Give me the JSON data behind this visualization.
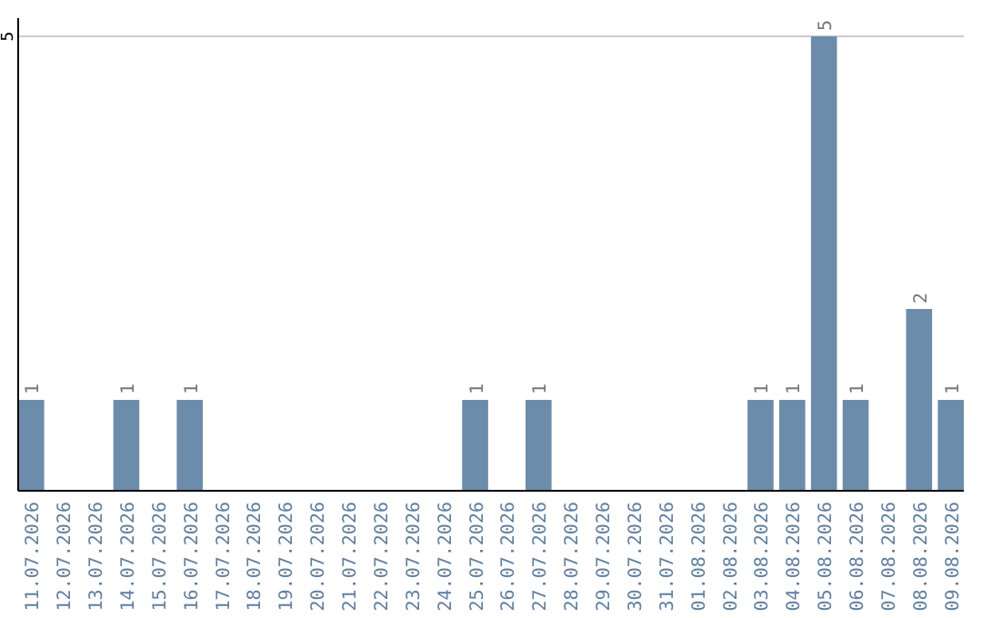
{
  "chart_data": {
    "type": "bar",
    "categories": [
      "11.07.2026",
      "12.07.2026",
      "13.07.2026",
      "14.07.2026",
      "15.07.2026",
      "16.07.2026",
      "17.07.2026",
      "18.07.2026",
      "19.07.2026",
      "20.07.2026",
      "21.07.2026",
      "22.07.2026",
      "23.07.2026",
      "24.07.2026",
      "25.07.2026",
      "26.07.2026",
      "27.07.2026",
      "28.07.2026",
      "29.07.2026",
      "30.07.2026",
      "31.07.2026",
      "01.08.2026",
      "02.08.2026",
      "03.08.2026",
      "04.08.2026",
      "05.08.2026",
      "06.08.2026",
      "07.08.2026",
      "08.08.2026",
      "09.08.2026"
    ],
    "values": [
      1,
      0,
      0,
      1,
      0,
      1,
      0,
      0,
      0,
      0,
      0,
      0,
      0,
      0,
      1,
      0,
      1,
      0,
      0,
      0,
      0,
      0,
      0,
      1,
      1,
      5,
      1,
      0,
      2,
      1
    ],
    "value_labels": [
      "1",
      null,
      null,
      "1",
      null,
      "1",
      null,
      null,
      null,
      null,
      null,
      null,
      null,
      null,
      "1",
      null,
      "1",
      null,
      null,
      null,
      null,
      null,
      null,
      "1",
      "1",
      "5",
      "1",
      null,
      "2",
      "1"
    ],
    "color": "#6b8cab",
    "ylim": [
      0,
      5.2
    ],
    "yticks": [
      5
    ],
    "grid": "y"
  }
}
